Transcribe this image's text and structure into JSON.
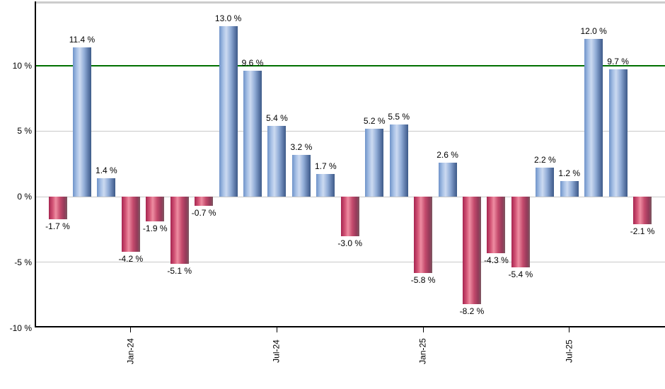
{
  "page": {
    "background_color": "#ffffff",
    "title": ""
  },
  "chart_data": {
    "type": "bar",
    "title": "",
    "xlabel": "",
    "ylabel": "",
    "unit": "%",
    "values": [
      -1.7,
      11.4,
      1.4,
      -4.2,
      -1.9,
      -5.1,
      -0.7,
      13.0,
      9.6,
      5.4,
      3.2,
      1.7,
      -3.0,
      5.2,
      5.5,
      -5.8,
      2.6,
      -8.2,
      -4.3,
      -5.4,
      2.2,
      1.2,
      12.0,
      9.7,
      -2.1
    ],
    "bar_value_labels": [
      "-1.7 %",
      "11.4 %",
      "1.4 %",
      "-4.2 %",
      "-1.9 %",
      "-5.1 %",
      "-0.7 %",
      "13.0 %",
      "9.6 %",
      "5.4 %",
      "3.2 %",
      "1.7 %",
      "-3.0 %",
      "5.2 %",
      "5.5 %",
      "-5.8 %",
      "2.6 %",
      "-8.2 %",
      "-4.3 %",
      "-5.4 %",
      "2.2 %",
      "1.2 %",
      "12.0 %",
      "9.7 %",
      "-2.1 %"
    ],
    "x_axis": {
      "ticks": [
        {
          "label": "Jan-24",
          "bar_index": 3
        },
        {
          "label": "Jul-24",
          "bar_index": 9
        },
        {
          "label": "Jan-25",
          "bar_index": 15
        },
        {
          "label": "Jul-25",
          "bar_index": 21
        }
      ]
    },
    "y_axis": {
      "ticks": [
        {
          "label": "10 %",
          "value": 10,
          "gridline": false
        },
        {
          "label": "5 %",
          "value": 5,
          "gridline": true
        },
        {
          "label": "0 %",
          "value": 0,
          "gridline": true
        },
        {
          "label": "-5 %",
          "value": -5,
          "gridline": true
        },
        {
          "label": "-10 %",
          "value": -10,
          "gridline": false
        }
      ],
      "range": [
        -10,
        14.8
      ]
    },
    "reference_line": {
      "value": 10,
      "color": "#007000"
    },
    "colors": {
      "positive_bar": "#7094cb",
      "negative_bar": "#c44a6c",
      "grid": "#c9c9c9",
      "axis": "#000000",
      "reference": "#007000",
      "label_text": "#000000"
    },
    "grid": true,
    "legend": false
  }
}
